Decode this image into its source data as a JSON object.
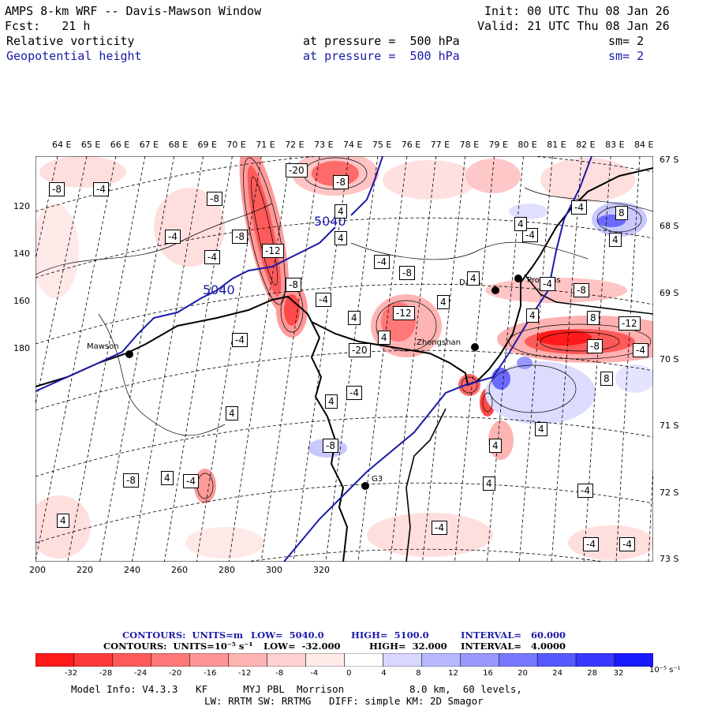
{
  "header": {
    "title": "AMPS 8-km WRF -- Davis-Mawson Window",
    "init": "Init: 00 UTC Thu 08 Jan 26",
    "forecast": "Fcst:   21 h",
    "valid": "Valid: 21 UTC Thu 08 Jan 26",
    "field1_name": "Relative vorticity",
    "field1_level": "at pressure =  500 hPa",
    "field1_sm": "sm= 2",
    "field2_name": "Geopotential height",
    "field2_level": "at pressure =  500 hPa",
    "field2_sm": "sm= 2"
  },
  "colors": {
    "geopotential_contour": "#1a1aa8",
    "negative_max": "#ff1a1a",
    "positive_max": "#1a1aff"
  },
  "map": {
    "top_longitudes": [
      "64 E",
      "65 E",
      "66 E",
      "67 E",
      "68 E",
      "69 E",
      "70 E",
      "71 E",
      "72 E",
      "73 E",
      "74 E",
      "75 E",
      "76 E",
      "77 E",
      "78 E",
      "79 E",
      "80 E",
      "81 E",
      "82 E",
      "83 E",
      "84 E"
    ],
    "right_latitudes": [
      "67 S",
      "68 S",
      "69 S",
      "70 S",
      "71 S",
      "72 S",
      "73 S"
    ],
    "left_grid_ticks": [
      "120",
      "140",
      "160",
      "180"
    ],
    "bottom_grid_ticks": [
      "200",
      "220",
      "240",
      "260",
      "280",
      "300",
      "320"
    ],
    "stations": [
      {
        "name": "Mawson"
      },
      {
        "name": "Davis"
      },
      {
        "name": "Zhongshan"
      },
      {
        "name": "Progress"
      },
      {
        "name": "G3"
      }
    ],
    "geopotential_labels": [
      "5040",
      "5040"
    ],
    "vorticity_labels": [
      "-8",
      "-4",
      "-20",
      "-8",
      "-8",
      "4",
      "-4",
      "-8",
      "8",
      "4",
      "-4",
      "-4",
      "-12",
      "4",
      "4",
      "-4",
      "-8",
      "-8",
      "-4",
      "4",
      "4",
      "-4",
      "-8",
      "8",
      "4",
      "-12",
      "-4",
      "-12",
      "4",
      "-8",
      "-4",
      "-20",
      "4",
      "-4",
      "4",
      "8",
      "4",
      "4",
      "-8",
      "4",
      "-8",
      "4",
      "4",
      "-4",
      "4",
      "-4",
      "-4",
      "-4",
      "-4",
      "-4"
    ]
  },
  "legend": {
    "line1_contours": "CONTOURS:  UNITS=m",
    "line1_low": "LOW=  5040.0",
    "line1_high": "HIGH=  5100.0",
    "line1_interval": "INTERVAL=   60.000",
    "line2_contours": "CONTOURS:  UNITS=10⁻⁵ s⁻¹",
    "line2_low": "LOW=  -32.000",
    "line2_high": "HIGH=  32.000",
    "line2_interval": "INTERVAL=   4.0000"
  },
  "colorbar": {
    "labels": [
      "-32",
      "-28",
      "-24",
      "-20",
      "-16",
      "-12",
      "-8",
      "-4",
      "0",
      "4",
      "8",
      "12",
      "16",
      "20",
      "24",
      "28",
      "32"
    ],
    "units": "10⁻⁵ s⁻¹",
    "colors": [
      "#ff1a1a",
      "#ff3a3a",
      "#ff5a5a",
      "#ff7878",
      "#ff9696",
      "#ffb4b4",
      "#ffd2d2",
      "#ffeaea",
      "#ffffff",
      "#ffffff",
      "#d8d8ff",
      "#b8b8ff",
      "#9898ff",
      "#7878ff",
      "#5858ff",
      "#3838ff",
      "#1a1aff"
    ]
  },
  "footer": {
    "model_info": "Model Info: V4.3.3   KF      MYJ PBL  Morrison           8.0 km,  60 levels,",
    "model_info2": "LW: RRTM SW: RRTMG   DIFF: simple KM: 2D Smagor"
  }
}
